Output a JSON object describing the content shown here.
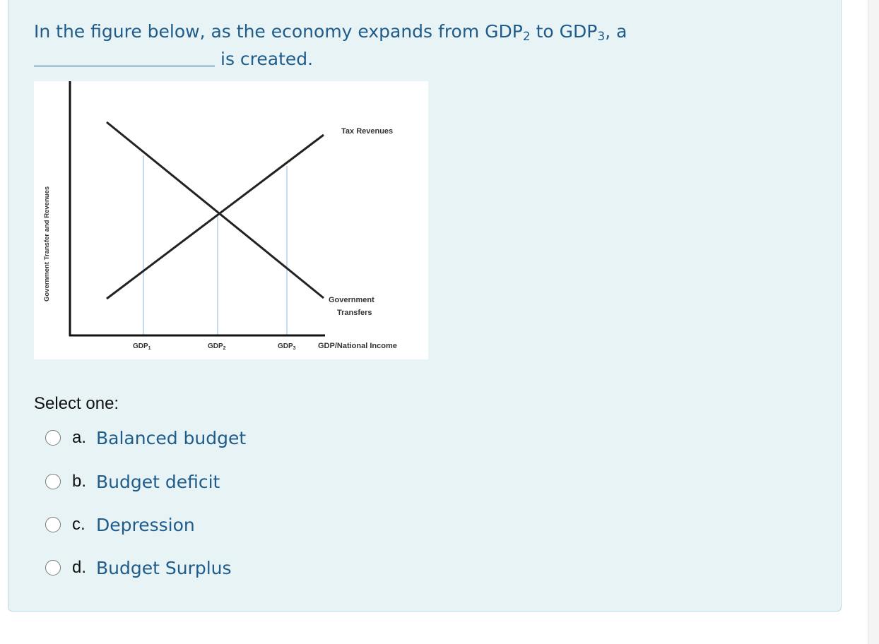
{
  "question": {
    "text_line1_pre": "In the figure below, as the economy expands from GDP",
    "sub2": "2",
    "text_mid": " to GDP",
    "sub3": "3",
    "text_line1_post": ", a",
    "text_line2": "is created."
  },
  "figure": {
    "y_axis_label": "Government Transfer and Revenues",
    "x_axis_label": "GDP/National Income",
    "tax_label": "Tax Revenues",
    "transfers_label_1": "Government",
    "transfers_label_2": "Transfers",
    "gdp1": "GDP",
    "gdp2": "GDP",
    "gdp3": "GDP",
    "gdp1_sub": "1",
    "gdp2_sub": "2",
    "gdp3_sub": "3"
  },
  "select_one_label": "Select one:",
  "options": [
    {
      "letter": "a.",
      "text": "Balanced budget"
    },
    {
      "letter": "b.",
      "text": "Budget deficit"
    },
    {
      "letter": "c.",
      "text": "Depression"
    },
    {
      "letter": "d.",
      "text": "Budget Surplus"
    }
  ],
  "colors": {
    "card_bg": "#e7f3f5",
    "card_border": "#b8dde7",
    "link_text": "#1f5c8a"
  }
}
